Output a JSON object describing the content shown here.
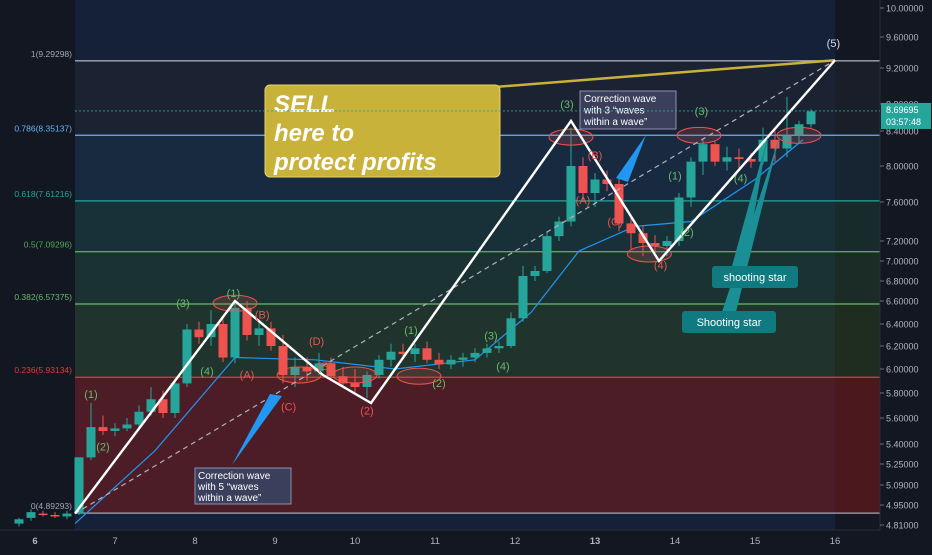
{
  "chart_data": {
    "type": "candlestick",
    "price_axis": {
      "ticks": [
        "10.00000",
        "9.60000",
        "9.20000",
        "8.80000",
        "8.40000",
        "8.00000",
        "7.60000",
        "7.20000",
        "7.00000",
        "6.80000",
        "6.60000",
        "6.40000",
        "6.20000",
        "6.00000",
        "5.80000",
        "5.60000",
        "5.40000",
        "5.25000",
        "5.09000",
        "4.95000",
        "4.81000"
      ],
      "tick_values": [
        10.0,
        9.6,
        9.2,
        8.8,
        8.4,
        8.0,
        7.6,
        7.2,
        7.0,
        6.8,
        6.6,
        6.4,
        6.2,
        6.0,
        5.8,
        5.6,
        5.4,
        5.25,
        5.09,
        4.95,
        4.81
      ],
      "current_price": "8.69695",
      "countdown": "03:57:48"
    },
    "time_axis": {
      "ticks": [
        "6",
        "7",
        "8",
        "9",
        "10",
        "11",
        "12",
        "13",
        "14",
        "15",
        "16"
      ],
      "tick_values": [
        6,
        7,
        8,
        9,
        10,
        11,
        12,
        13,
        14,
        15,
        16
      ],
      "bold_ticks": [
        "6",
        "13"
      ]
    },
    "fib_levels": [
      {
        "label": "0(4.89293)",
        "value": 4.89293,
        "color": "#a3a7b3"
      },
      {
        "label": "0.236(5.93134)",
        "value": 5.93134,
        "color": "#e53935"
      },
      {
        "label": "0.382(6.57375)",
        "value": 6.57375,
        "color": "#66bb6a"
      },
      {
        "label": "0.5(7.09296)",
        "value": 7.09296,
        "color": "#4caf50"
      },
      {
        "label": "0.618(7.61216)",
        "value": 7.61216,
        "color": "#26a69a"
      },
      {
        "label": "0.786(8.35137)",
        "value": 8.35137,
        "color": "#64b5f6"
      },
      {
        "label": "1(9.29298)",
        "value": 9.29298,
        "color": "#a3a7b3"
      }
    ],
    "candles": [
      {
        "t": 5.8,
        "o": 4.82,
        "h": 4.86,
        "l": 4.8,
        "c": 4.85
      },
      {
        "t": 5.95,
        "o": 4.86,
        "h": 4.92,
        "l": 4.84,
        "c": 4.9
      },
      {
        "t": 6.1,
        "o": 4.89,
        "h": 4.91,
        "l": 4.87,
        "c": 4.88
      },
      {
        "t": 6.25,
        "o": 4.88,
        "h": 4.9,
        "l": 4.86,
        "c": 4.87
      },
      {
        "t": 6.4,
        "o": 4.87,
        "h": 4.91,
        "l": 4.85,
        "c": 4.89
      },
      {
        "t": 6.55,
        "o": 4.89,
        "h": 5.3,
        "l": 4.88,
        "c": 5.3
      },
      {
        "t": 6.7,
        "o": 5.3,
        "h": 5.72,
        "l": 5.28,
        "c": 5.53
      },
      {
        "t": 6.85,
        "o": 5.53,
        "h": 5.62,
        "l": 5.47,
        "c": 5.5
      },
      {
        "t": 7.0,
        "o": 5.5,
        "h": 5.56,
        "l": 5.46,
        "c": 5.52
      },
      {
        "t": 7.15,
        "o": 5.52,
        "h": 5.6,
        "l": 5.5,
        "c": 5.55
      },
      {
        "t": 7.3,
        "o": 5.55,
        "h": 5.7,
        "l": 5.52,
        "c": 5.65
      },
      {
        "t": 7.45,
        "o": 5.65,
        "h": 5.85,
        "l": 5.62,
        "c": 5.75
      },
      {
        "t": 7.6,
        "o": 5.75,
        "h": 5.82,
        "l": 5.6,
        "c": 5.64
      },
      {
        "t": 7.75,
        "o": 5.64,
        "h": 5.92,
        "l": 5.6,
        "c": 5.88
      },
      {
        "t": 7.9,
        "o": 5.88,
        "h": 6.4,
        "l": 5.85,
        "c": 6.35
      },
      {
        "t": 8.05,
        "o": 6.35,
        "h": 6.42,
        "l": 6.22,
        "c": 6.28
      },
      {
        "t": 8.2,
        "o": 6.28,
        "h": 6.52,
        "l": 6.2,
        "c": 6.4
      },
      {
        "t": 8.35,
        "o": 6.4,
        "h": 6.44,
        "l": 6.06,
        "c": 6.1
      },
      {
        "t": 8.5,
        "o": 6.1,
        "h": 6.6,
        "l": 6.05,
        "c": 6.54
      },
      {
        "t": 8.65,
        "o": 6.54,
        "h": 6.6,
        "l": 6.25,
        "c": 6.3
      },
      {
        "t": 8.8,
        "o": 6.3,
        "h": 6.44,
        "l": 6.2,
        "c": 6.36
      },
      {
        "t": 8.95,
        "o": 6.36,
        "h": 6.42,
        "l": 6.16,
        "c": 6.2
      },
      {
        "t": 9.1,
        "o": 6.2,
        "h": 6.3,
        "l": 5.88,
        "c": 5.95
      },
      {
        "t": 9.25,
        "o": 5.95,
        "h": 6.1,
        "l": 5.85,
        "c": 6.02
      },
      {
        "t": 9.4,
        "o": 6.02,
        "h": 6.1,
        "l": 5.9,
        "c": 5.98
      },
      {
        "t": 9.55,
        "o": 5.98,
        "h": 6.14,
        "l": 5.95,
        "c": 6.05
      },
      {
        "t": 9.7,
        "o": 6.05,
        "h": 6.1,
        "l": 5.9,
        "c": 5.94
      },
      {
        "t": 9.85,
        "o": 5.94,
        "h": 6.02,
        "l": 5.84,
        "c": 5.88
      },
      {
        "t": 10.0,
        "o": 5.88,
        "h": 6.0,
        "l": 5.8,
        "c": 5.85
      },
      {
        "t": 10.15,
        "o": 5.85,
        "h": 5.98,
        "l": 5.76,
        "c": 5.95
      },
      {
        "t": 10.3,
        "o": 5.95,
        "h": 6.12,
        "l": 5.92,
        "c": 6.08
      },
      {
        "t": 10.45,
        "o": 6.08,
        "h": 6.22,
        "l": 6.02,
        "c": 6.15
      },
      {
        "t": 10.6,
        "o": 6.15,
        "h": 6.22,
        "l": 6.1,
        "c": 6.13
      },
      {
        "t": 10.75,
        "o": 6.13,
        "h": 6.22,
        "l": 6.06,
        "c": 6.18
      },
      {
        "t": 10.9,
        "o": 6.18,
        "h": 6.24,
        "l": 6.05,
        "c": 6.08
      },
      {
        "t": 11.05,
        "o": 6.08,
        "h": 6.14,
        "l": 6.0,
        "c": 6.04
      },
      {
        "t": 11.2,
        "o": 6.04,
        "h": 6.12,
        "l": 6.0,
        "c": 6.08
      },
      {
        "t": 11.35,
        "o": 6.08,
        "h": 6.14,
        "l": 6.02,
        "c": 6.1
      },
      {
        "t": 11.5,
        "o": 6.1,
        "h": 6.18,
        "l": 6.06,
        "c": 6.14
      },
      {
        "t": 11.65,
        "o": 6.14,
        "h": 6.22,
        "l": 6.1,
        "c": 6.18
      },
      {
        "t": 11.8,
        "o": 6.18,
        "h": 6.24,
        "l": 6.14,
        "c": 6.2
      },
      {
        "t": 11.95,
        "o": 6.2,
        "h": 6.5,
        "l": 6.18,
        "c": 6.45
      },
      {
        "t": 12.1,
        "o": 6.45,
        "h": 6.95,
        "l": 6.42,
        "c": 6.85
      },
      {
        "t": 12.25,
        "o": 6.85,
        "h": 6.95,
        "l": 6.8,
        "c": 6.9
      },
      {
        "t": 12.4,
        "o": 6.9,
        "h": 7.3,
        "l": 6.88,
        "c": 7.25
      },
      {
        "t": 12.55,
        "o": 7.25,
        "h": 7.45,
        "l": 7.2,
        "c": 7.4
      },
      {
        "t": 12.7,
        "o": 7.4,
        "h": 8.45,
        "l": 7.35,
        "c": 8.0
      },
      {
        "t": 12.85,
        "o": 8.0,
        "h": 8.1,
        "l": 7.6,
        "c": 7.7
      },
      {
        "t": 13.0,
        "o": 7.7,
        "h": 7.92,
        "l": 7.55,
        "c": 7.85
      },
      {
        "t": 13.15,
        "o": 7.85,
        "h": 7.95,
        "l": 7.72,
        "c": 7.8
      },
      {
        "t": 13.3,
        "o": 7.8,
        "h": 7.88,
        "l": 7.3,
        "c": 7.38
      },
      {
        "t": 13.45,
        "o": 7.38,
        "h": 7.45,
        "l": 7.12,
        "c": 7.28
      },
      {
        "t": 13.6,
        "o": 7.28,
        "h": 7.35,
        "l": 7.05,
        "c": 7.18
      },
      {
        "t": 13.75,
        "o": 7.18,
        "h": 7.26,
        "l": 7.08,
        "c": 7.15
      },
      {
        "t": 13.9,
        "o": 7.15,
        "h": 7.25,
        "l": 7.05,
        "c": 7.2
      },
      {
        "t": 14.05,
        "o": 7.2,
        "h": 7.7,
        "l": 7.15,
        "c": 7.65
      },
      {
        "t": 14.2,
        "o": 7.65,
        "h": 8.1,
        "l": 7.55,
        "c": 8.05
      },
      {
        "t": 14.35,
        "o": 8.05,
        "h": 8.3,
        "l": 7.9,
        "c": 8.25
      },
      {
        "t": 14.5,
        "o": 8.25,
        "h": 8.28,
        "l": 8.0,
        "c": 8.05
      },
      {
        "t": 14.65,
        "o": 8.05,
        "h": 8.22,
        "l": 7.95,
        "c": 8.1
      },
      {
        "t": 14.8,
        "o": 8.1,
        "h": 8.2,
        "l": 7.98,
        "c": 8.08
      },
      {
        "t": 14.95,
        "o": 8.08,
        "h": 8.15,
        "l": 7.98,
        "c": 8.05
      },
      {
        "t": 15.1,
        "o": 8.05,
        "h": 8.45,
        "l": 8.02,
        "c": 8.3
      },
      {
        "t": 15.25,
        "o": 8.3,
        "h": 8.4,
        "l": 8.05,
        "c": 8.2
      },
      {
        "t": 15.4,
        "o": 8.2,
        "h": 8.88,
        "l": 8.1,
        "c": 8.35
      },
      {
        "t": 15.55,
        "o": 8.35,
        "h": 8.55,
        "l": 8.25,
        "c": 8.5
      },
      {
        "t": 15.7,
        "o": 8.5,
        "h": 8.72,
        "l": 8.45,
        "c": 8.69
      }
    ],
    "wave_path": [
      [
        6.5,
        4.89
      ],
      [
        8.5,
        6.6
      ],
      [
        9.6,
        5.95
      ],
      [
        10.2,
        5.72
      ],
      [
        12.7,
        8.55
      ],
      [
        13.8,
        7.0
      ],
      [
        16,
        9.3
      ]
    ],
    "dashed_line": [
      [
        6.5,
        4.89
      ],
      [
        16,
        9.3
      ]
    ],
    "yellow_line": [
      [
        10.2,
        8.88
      ],
      [
        16,
        9.3
      ]
    ],
    "ma_line": [
      [
        6.5,
        4.82
      ],
      [
        7.5,
        5.35
      ],
      [
        8.5,
        6.1
      ],
      [
        9.5,
        6.08
      ],
      [
        10.5,
        6.0
      ],
      [
        11.5,
        6.08
      ],
      [
        12.2,
        6.5
      ],
      [
        12.8,
        7.1
      ],
      [
        13.5,
        7.35
      ],
      [
        14.2,
        7.4
      ],
      [
        15.0,
        7.85
      ],
      [
        15.6,
        8.3
      ]
    ],
    "wave_labels": [
      {
        "text": "(1)",
        "t": 6.7,
        "v": 5.76,
        "color": "#66bb6a"
      },
      {
        "text": "(2)",
        "t": 6.85,
        "v": 5.35,
        "color": "#66bb6a"
      },
      {
        "text": "(3)",
        "t": 7.85,
        "v": 6.55,
        "color": "#66bb6a"
      },
      {
        "text": "(4)",
        "t": 8.15,
        "v": 5.95,
        "color": "#66bb6a"
      },
      {
        "text": "(1)",
        "t": 8.48,
        "v": 6.64,
        "color": "#66bb6a"
      },
      {
        "text": "(A)",
        "t": 8.65,
        "v": 5.92,
        "color": "#ef5350"
      },
      {
        "text": "(B)",
        "t": 8.84,
        "v": 6.45,
        "color": "#ef5350"
      },
      {
        "text": "(C)",
        "t": 9.17,
        "v": 5.66,
        "color": "#ef5350"
      },
      {
        "text": "(D)",
        "t": 9.52,
        "v": 6.21,
        "color": "#ef5350"
      },
      {
        "text": "(E)",
        "t": 9.62,
        "v": 5.99,
        "color": "#ef5350"
      },
      {
        "text": "(2)",
        "t": 10.15,
        "v": 5.63,
        "color": "#ef5350"
      },
      {
        "text": "(1)",
        "t": 10.7,
        "v": 6.31,
        "color": "#66bb6a"
      },
      {
        "text": "(2)",
        "t": 11.05,
        "v": 5.85,
        "color": "#66bb6a"
      },
      {
        "text": "(3)",
        "t": 11.7,
        "v": 6.26,
        "color": "#66bb6a"
      },
      {
        "text": "(4)",
        "t": 11.85,
        "v": 5.99,
        "color": "#66bb6a"
      },
      {
        "text": "(3)",
        "t": 12.65,
        "v": 8.74,
        "color": "#66bb6a"
      },
      {
        "text": "(A)",
        "t": 12.85,
        "v": 7.58,
        "color": "#ef5350"
      },
      {
        "text": "(B)",
        "t": 13.0,
        "v": 8.08,
        "color": "#ef5350"
      },
      {
        "text": "(C)",
        "t": 13.25,
        "v": 7.36,
        "color": "#ef5350"
      },
      {
        "text": "(4)",
        "t": 13.82,
        "v": 6.92,
        "color": "#ef5350"
      },
      {
        "text": "(1)",
        "t": 14.0,
        "v": 7.85,
        "color": "#66bb6a"
      },
      {
        "text": "(2)",
        "t": 14.15,
        "v": 7.25,
        "color": "#66bb6a"
      },
      {
        "text": "(3)",
        "t": 14.33,
        "v": 8.64,
        "color": "#66bb6a"
      },
      {
        "text": "(4)",
        "t": 14.82,
        "v": 7.82,
        "color": "#66bb6a"
      },
      {
        "text": "(5)",
        "t": 15.98,
        "v": 9.47,
        "color": "#d8dce4"
      }
    ],
    "ellipses": [
      {
        "t": 8.5,
        "v": 6.58
      },
      {
        "t": 9.3,
        "v": 5.95
      },
      {
        "t": 10.0,
        "v": 5.95
      },
      {
        "t": 10.8,
        "v": 5.94
      },
      {
        "t": 12.7,
        "v": 8.33
      },
      {
        "t": 13.68,
        "v": 7.07
      },
      {
        "t": 14.3,
        "v": 8.35
      },
      {
        "t": 15.55,
        "v": 8.35
      }
    ],
    "annotations": {
      "sell_lines": [
        "SELL",
        "here to",
        "protect profits"
      ],
      "correction_top_lines": [
        "Correction wave",
        "with 3 “waves",
        "within a wave”"
      ],
      "correction_bottom_lines": [
        "Correction wave",
        "with 5 “waves",
        "within a wave”"
      ],
      "shooting_star_upper": "shooting star",
      "shooting_star_lower": "Shooting star"
    },
    "grid": false
  },
  "colors": {
    "background": "#131722",
    "up_candle": "#26a69a",
    "down_candle": "#ef5350",
    "wave_line": "#ffffff",
    "ma_line": "#2196f3",
    "sell_box": "#c9b23a",
    "teal_callout": "#0f7a80",
    "callout_box": "#3a3f5c"
  }
}
